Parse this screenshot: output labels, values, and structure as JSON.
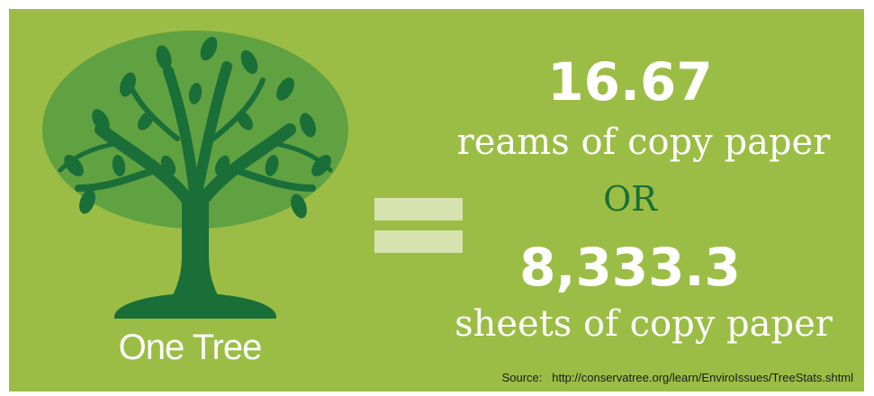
{
  "tree_label": "One Tree",
  "primary_value": "16.67",
  "primary_unit": "reams of copy paper",
  "connector": "OR",
  "secondary_value": "8,333.3",
  "secondary_unit": "sheets of copy paper",
  "source": {
    "label": "Source:",
    "url": "http://conservatree.org/learn/EnviroIssues/TreeStats.shtml"
  },
  "colors": {
    "background": "#9bbd45",
    "tree": "#1a6e37",
    "leaf": "#2f8a3f",
    "text": "#ffffff",
    "equals_sign": "#d6e3ae"
  },
  "icons": [
    "tree-icon",
    "equals-icon"
  ]
}
